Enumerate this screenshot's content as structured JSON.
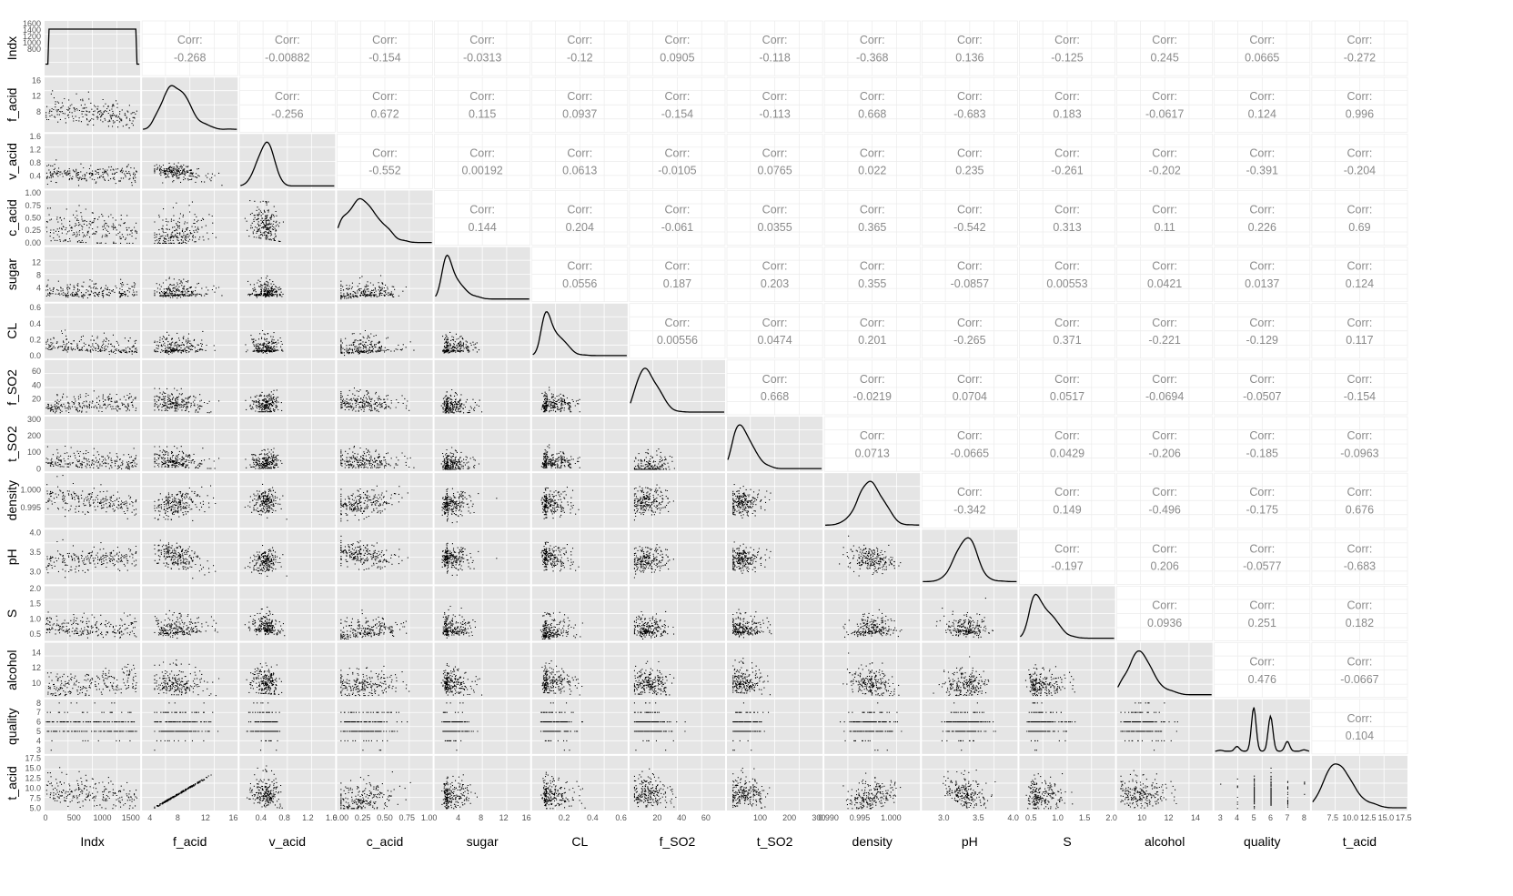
{
  "chart_data": {
    "type": "scatter",
    "variables": [
      "Indx",
      "f_acid",
      "v_acid",
      "c_acid",
      "sugar",
      "CL",
      "f_SO2",
      "t_SO2",
      "density",
      "pH",
      "S",
      "alcohol",
      "quality",
      "t_acid"
    ],
    "corr_label": "Corr:",
    "correlations": [
      [
        "Indx",
        "f_acid",
        "-0.268"
      ],
      [
        "Indx",
        "v_acid",
        "-0.00882"
      ],
      [
        "Indx",
        "c_acid",
        "-0.154"
      ],
      [
        "Indx",
        "sugar",
        "-0.0313"
      ],
      [
        "Indx",
        "CL",
        "-0.12"
      ],
      [
        "Indx",
        "f_SO2",
        "0.0905"
      ],
      [
        "Indx",
        "t_SO2",
        "-0.118"
      ],
      [
        "Indx",
        "density",
        "-0.368"
      ],
      [
        "Indx",
        "pH",
        "0.136"
      ],
      [
        "Indx",
        "S",
        "-0.125"
      ],
      [
        "Indx",
        "alcohol",
        "0.245"
      ],
      [
        "Indx",
        "quality",
        "0.0665"
      ],
      [
        "Indx",
        "t_acid",
        "-0.272"
      ],
      [
        "f_acid",
        "v_acid",
        "-0.256"
      ],
      [
        "f_acid",
        "c_acid",
        "0.672"
      ],
      [
        "f_acid",
        "sugar",
        "0.115"
      ],
      [
        "f_acid",
        "CL",
        "0.0937"
      ],
      [
        "f_acid",
        "f_SO2",
        "-0.154"
      ],
      [
        "f_acid",
        "t_SO2",
        "-0.113"
      ],
      [
        "f_acid",
        "density",
        "0.668"
      ],
      [
        "f_acid",
        "pH",
        "-0.683"
      ],
      [
        "f_acid",
        "S",
        "0.183"
      ],
      [
        "f_acid",
        "alcohol",
        "-0.0617"
      ],
      [
        "f_acid",
        "quality",
        "0.124"
      ],
      [
        "f_acid",
        "t_acid",
        "0.996"
      ],
      [
        "v_acid",
        "c_acid",
        "-0.552"
      ],
      [
        "v_acid",
        "sugar",
        "0.00192"
      ],
      [
        "v_acid",
        "CL",
        "0.0613"
      ],
      [
        "v_acid",
        "f_SO2",
        "-0.0105"
      ],
      [
        "v_acid",
        "t_SO2",
        "0.0765"
      ],
      [
        "v_acid",
        "density",
        "0.022"
      ],
      [
        "v_acid",
        "pH",
        "0.235"
      ],
      [
        "v_acid",
        "S",
        "-0.261"
      ],
      [
        "v_acid",
        "alcohol",
        "-0.202"
      ],
      [
        "v_acid",
        "quality",
        "-0.391"
      ],
      [
        "v_acid",
        "t_acid",
        "-0.204"
      ],
      [
        "c_acid",
        "sugar",
        "0.144"
      ],
      [
        "c_acid",
        "CL",
        "0.204"
      ],
      [
        "c_acid",
        "f_SO2",
        "-0.061"
      ],
      [
        "c_acid",
        "t_SO2",
        "0.0355"
      ],
      [
        "c_acid",
        "density",
        "0.365"
      ],
      [
        "c_acid",
        "pH",
        "-0.542"
      ],
      [
        "c_acid",
        "S",
        "0.313"
      ],
      [
        "c_acid",
        "alcohol",
        "0.11"
      ],
      [
        "c_acid",
        "quality",
        "0.226"
      ],
      [
        "c_acid",
        "t_acid",
        "0.69"
      ],
      [
        "sugar",
        "CL",
        "0.0556"
      ],
      [
        "sugar",
        "f_SO2",
        "0.187"
      ],
      [
        "sugar",
        "t_SO2",
        "0.203"
      ],
      [
        "sugar",
        "density",
        "0.355"
      ],
      [
        "sugar",
        "pH",
        "-0.0857"
      ],
      [
        "sugar",
        "S",
        "0.00553"
      ],
      [
        "sugar",
        "alcohol",
        "0.0421"
      ],
      [
        "sugar",
        "quality",
        "0.0137"
      ],
      [
        "sugar",
        "t_acid",
        "0.124"
      ],
      [
        "CL",
        "f_SO2",
        "0.00556"
      ],
      [
        "CL",
        "t_SO2",
        "0.0474"
      ],
      [
        "CL",
        "density",
        "0.201"
      ],
      [
        "CL",
        "pH",
        "-0.265"
      ],
      [
        "CL",
        "S",
        "0.371"
      ],
      [
        "CL",
        "alcohol",
        "-0.221"
      ],
      [
        "CL",
        "quality",
        "-0.129"
      ],
      [
        "CL",
        "t_acid",
        "0.117"
      ],
      [
        "f_SO2",
        "t_SO2",
        "0.668"
      ],
      [
        "f_SO2",
        "density",
        "-0.0219"
      ],
      [
        "f_SO2",
        "pH",
        "0.0704"
      ],
      [
        "f_SO2",
        "S",
        "0.0517"
      ],
      [
        "f_SO2",
        "alcohol",
        "-0.0694"
      ],
      [
        "f_SO2",
        "quality",
        "-0.0507"
      ],
      [
        "f_SO2",
        "t_acid",
        "-0.154"
      ],
      [
        "t_SO2",
        "density",
        "0.0713"
      ],
      [
        "t_SO2",
        "pH",
        "-0.0665"
      ],
      [
        "t_SO2",
        "S",
        "0.0429"
      ],
      [
        "t_SO2",
        "alcohol",
        "-0.206"
      ],
      [
        "t_SO2",
        "quality",
        "-0.185"
      ],
      [
        "t_SO2",
        "t_acid",
        "-0.0963"
      ],
      [
        "density",
        "pH",
        "-0.342"
      ],
      [
        "density",
        "S",
        "0.149"
      ],
      [
        "density",
        "alcohol",
        "-0.496"
      ],
      [
        "density",
        "quality",
        "-0.175"
      ],
      [
        "density",
        "t_acid",
        "0.676"
      ],
      [
        "pH",
        "S",
        "-0.197"
      ],
      [
        "pH",
        "alcohol",
        "0.206"
      ],
      [
        "pH",
        "quality",
        "-0.0577"
      ],
      [
        "pH",
        "t_acid",
        "-0.683"
      ],
      [
        "S",
        "alcohol",
        "0.0936"
      ],
      [
        "S",
        "quality",
        "0.251"
      ],
      [
        "S",
        "t_acid",
        "0.182"
      ],
      [
        "alcohol",
        "quality",
        "0.476"
      ],
      [
        "alcohol",
        "t_acid",
        "-0.0667"
      ],
      [
        "quality",
        "t_acid",
        "0.104"
      ]
    ],
    "y_ticks": {
      "Indx": [
        "800",
        "1000",
        "1200",
        "1400",
        "1600"
      ],
      "f_acid": [
        "8",
        "12",
        "16"
      ],
      "v_acid": [
        "0.4",
        "0.8",
        "1.2",
        "1.6"
      ],
      "c_acid": [
        "0.00",
        "0.25",
        "0.50",
        "0.75",
        "1.00"
      ],
      "sugar": [
        "4",
        "8",
        "12"
      ],
      "CL": [
        "0.0",
        "0.2",
        "0.4",
        "0.6"
      ],
      "f_SO2": [
        "20",
        "40",
        "60"
      ],
      "t_SO2": [
        "0",
        "100",
        "200",
        "300"
      ],
      "density": [
        "0.995",
        "1.000"
      ],
      "pH": [
        "3.0",
        "3.5",
        "4.0"
      ],
      "S": [
        "0.5",
        "1.0",
        "1.5",
        "2.0"
      ],
      "alcohol": [
        "10",
        "12",
        "14"
      ],
      "quality": [
        "3",
        "4",
        "5",
        "6",
        "7",
        "8"
      ],
      "t_acid": [
        "5.0",
        "7.5",
        "10.0",
        "12.5",
        "15.0",
        "17.5"
      ]
    },
    "x_ticks": {
      "Indx": [
        "0",
        "500",
        "1000",
        "1500"
      ],
      "f_acid": [
        "4",
        "8",
        "12",
        "16"
      ],
      "v_acid": [
        "0.4",
        "0.8",
        "1.2",
        "1.6"
      ],
      "c_acid": [
        "0.00",
        "0.25",
        "0.50",
        "0.75",
        "1.00"
      ],
      "sugar": [
        "4",
        "8",
        "12",
        "16"
      ],
      "CL": [
        "0.2",
        "0.4",
        "0.6"
      ],
      "f_SO2": [
        "20",
        "40",
        "60"
      ],
      "t_SO2": [
        "100",
        "200",
        "300"
      ],
      "density": [
        "0.990",
        "0.995",
        "1.000"
      ],
      "pH": [
        "3.0",
        "3.5",
        "4.0"
      ],
      "S": [
        "0.5",
        "1.0",
        "1.5",
        "2.0"
      ],
      "alcohol": [
        "10",
        "12",
        "14"
      ],
      "quality": [
        "3",
        "4",
        "5",
        "6",
        "7",
        "8"
      ],
      "t_acid": [
        "7.5",
        "10.0",
        "12.5",
        "15.0",
        "17.5"
      ]
    },
    "ranges": {
      "Indx": [
        0,
        1650
      ],
      "f_acid": [
        3,
        16.5
      ],
      "v_acid": [
        0.05,
        1.65
      ],
      "c_acid": [
        -0.03,
        1.03
      ],
      "sugar": [
        0,
        16.5
      ],
      "CL": [
        -0.02,
        0.64
      ],
      "f_SO2": [
        -2,
        75
      ],
      "t_SO2": [
        -10,
        310
      ],
      "density": [
        0.9895,
        1.0045
      ],
      "pH": [
        2.7,
        4.05
      ],
      "S": [
        0.3,
        2.05
      ],
      "alcohol": [
        8.2,
        15.2
      ],
      "quality": [
        2.7,
        8.3
      ],
      "t_acid": [
        4.7,
        17.9
      ]
    },
    "grid": true
  }
}
